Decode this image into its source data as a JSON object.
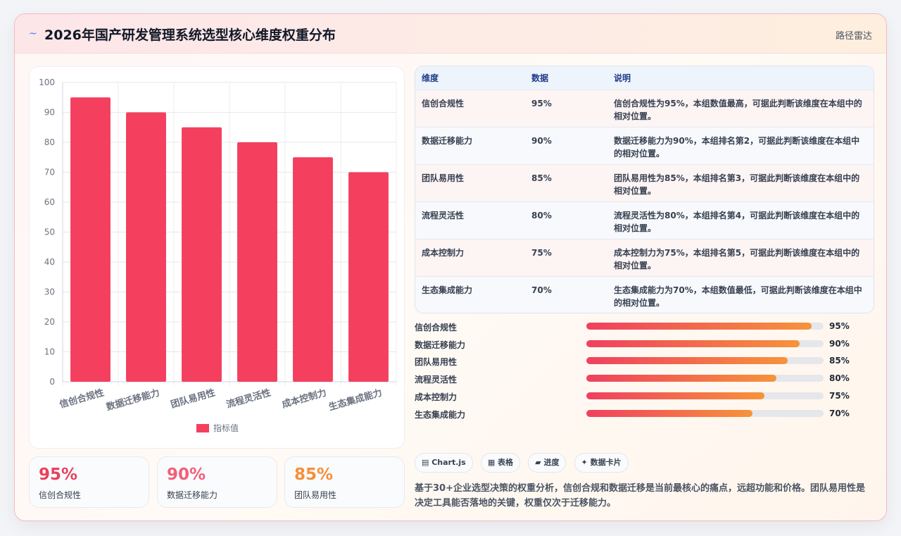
{
  "header": {
    "logo_icon": "~",
    "title": "2026年国产研发管理系统选型核心维度权重分布",
    "tag": "路径雷达"
  },
  "chart_data": {
    "type": "bar",
    "categories": [
      "信创合规性",
      "数据迁移能力",
      "团队易用性",
      "流程灵活性",
      "成本控制力",
      "生态集成能力"
    ],
    "series": [
      {
        "name": "指标值",
        "values": [
          95,
          90,
          85,
          80,
          75,
          70
        ],
        "color": "#f43f5e"
      }
    ],
    "ylim": [
      0,
      100
    ],
    "yticks": [
      0,
      10,
      20,
      30,
      40,
      50,
      60,
      70,
      80,
      90,
      100
    ],
    "legend": "bottom",
    "grid": true
  },
  "kpis": [
    {
      "value": "95%",
      "label": "信创合规性",
      "color": "#e8415c"
    },
    {
      "value": "90%",
      "label": "数据迁移能力",
      "color": "#f0607a"
    },
    {
      "value": "85%",
      "label": "团队易用性",
      "color": "#f58f3a"
    }
  ],
  "table": {
    "headers": [
      "维度",
      "数据",
      "说明"
    ],
    "rows": [
      {
        "dim": "信创合规性",
        "val": "95%",
        "desc": "信创合规性为95%，本组数值最高，可据此判断该维度在本组中的相对位置。"
      },
      {
        "dim": "数据迁移能力",
        "val": "90%",
        "desc": "数据迁移能力为90%，本组排名第2，可据此判断该维度在本组中的相对位置。"
      },
      {
        "dim": "团队易用性",
        "val": "85%",
        "desc": "团队易用性为85%，本组排名第3，可据此判断该维度在本组中的相对位置。"
      },
      {
        "dim": "流程灵活性",
        "val": "80%",
        "desc": "流程灵活性为80%，本组排名第4，可据此判断该维度在本组中的相对位置。"
      },
      {
        "dim": "成本控制力",
        "val": "75%",
        "desc": "成本控制力为75%，本组排名第5，可据此判断该维度在本组中的相对位置。"
      },
      {
        "dim": "生态集成能力",
        "val": "70%",
        "desc": "生态集成能力为70%，本组数值最低，可据此判断该维度在本组中的相对位置。"
      }
    ]
  },
  "progress": [
    {
      "label": "信创合规性",
      "value": 95,
      "text": "95%"
    },
    {
      "label": "数据迁移能力",
      "value": 90,
      "text": "90%"
    },
    {
      "label": "团队易用性",
      "value": 85,
      "text": "85%"
    },
    {
      "label": "流程灵活性",
      "value": 80,
      "text": "80%"
    },
    {
      "label": "成本控制力",
      "value": 75,
      "text": "75%"
    },
    {
      "label": "生态集成能力",
      "value": 70,
      "text": "70%"
    }
  ],
  "chips": [
    {
      "icon": "chart-icon",
      "label": "▤ Chart.js"
    },
    {
      "icon": "table-icon",
      "label": "▦ 表格"
    },
    {
      "icon": "progress-icon",
      "label": "▰ 进度"
    },
    {
      "icon": "card-icon",
      "label": "✦ 数据卡片"
    }
  ],
  "summary": "基于30+企业选型决策的权重分析，信创合规和数据迁移是当前最核心的痛点，远超功能和价格。团队易用性是决定工具能否落地的关键，权重仅次于迁移能力。"
}
